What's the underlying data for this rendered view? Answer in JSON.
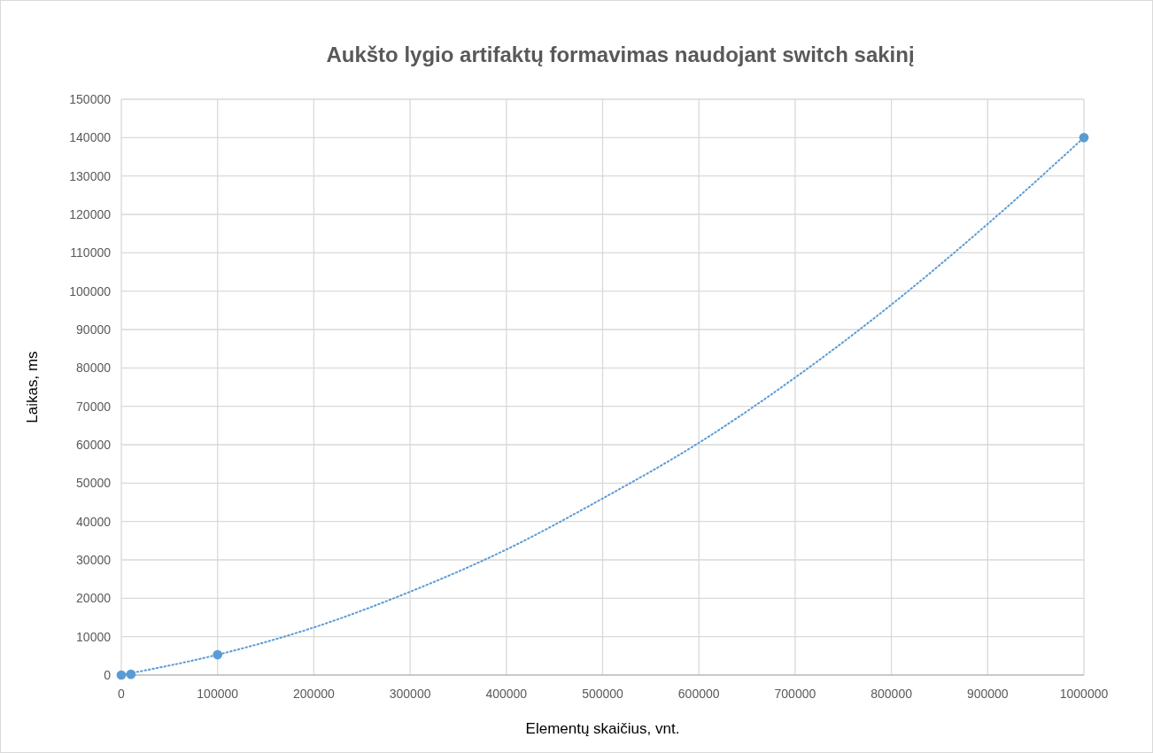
{
  "chart_data": {
    "type": "scatter",
    "title": "Aukšto lygio artifaktų  formavimas naudojant switch sakinį",
    "xlabel": "Elementų skaičius, vnt.",
    "ylabel": "Laikas, ms",
    "xlim": [
      0,
      1000000
    ],
    "xticks": [
      0,
      100000,
      200000,
      300000,
      400000,
      500000,
      600000,
      700000,
      800000,
      900000,
      1000000
    ],
    "ylim": [
      0,
      150000
    ],
    "yticks": [
      0,
      10000,
      20000,
      30000,
      40000,
      50000,
      60000,
      70000,
      80000,
      90000,
      100000,
      110000,
      120000,
      130000,
      140000,
      150000
    ],
    "grid": true,
    "series": [
      {
        "color": "#5b9bd5",
        "marker": "circle",
        "x": [
          0,
          10000,
          100000,
          1000000
        ],
        "values": [
          0,
          200,
          5300,
          140000
        ]
      },
      {
        "type": "line",
        "color": "#5b9bd5",
        "line_style": "dotted",
        "marker": "none",
        "x": [
          0,
          100000,
          200000,
          300000,
          400000,
          500000,
          600000,
          700000,
          800000,
          900000,
          1000000
        ],
        "values": [
          0,
          5300,
          12400,
          21700,
          32700,
          46000,
          60500,
          77500,
          96500,
          117500,
          140000
        ]
      }
    ]
  }
}
